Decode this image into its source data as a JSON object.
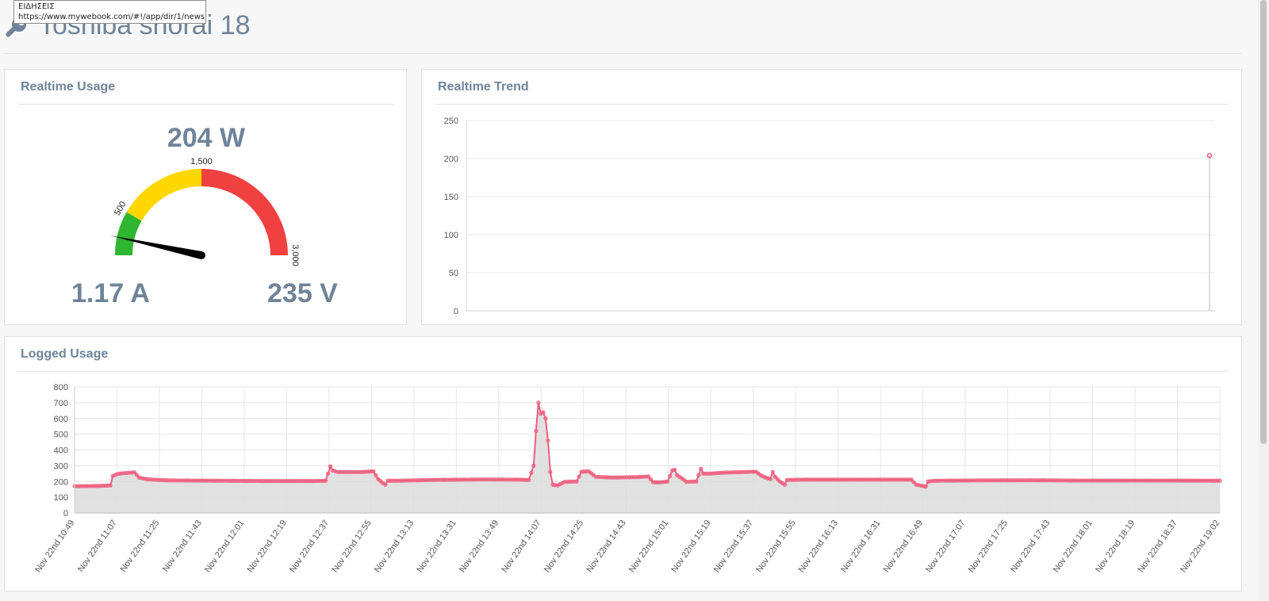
{
  "tooltip": {
    "line1": "ΕΙΔΗΣΕΙΣ",
    "line2": "https://www.mywebook.com/#!/app/dir/1/news"
  },
  "header": {
    "title": "Toshiba shorai 18",
    "icon": "wrench-icon"
  },
  "realtime_usage": {
    "title": "Realtime Usage",
    "power": "204 W",
    "current": "1.17 A",
    "voltage": "235 V",
    "gauge": {
      "min": 0,
      "max": 3000,
      "value": 204,
      "bands": [
        {
          "from": 0,
          "to": 500,
          "color": "#2fb52f"
        },
        {
          "from": 500,
          "to": 1500,
          "color": "#ffd700"
        },
        {
          "from": 1500,
          "to": 3000,
          "color": "#f04040"
        }
      ],
      "tick_labels": [
        {
          "value": 500,
          "label": "500"
        },
        {
          "value": 1500,
          "label": "1,500"
        },
        {
          "value": 3000,
          "label": "3,000"
        }
      ]
    }
  },
  "realtime_trend": {
    "title": "Realtime Trend",
    "chart_data": {
      "type": "line",
      "ylim": [
        0,
        250
      ],
      "y_ticks": [
        "0",
        "50",
        "100",
        "150",
        "200",
        "250"
      ],
      "values": [
        204
      ],
      "color": "#ef5f7f",
      "grid": true
    }
  },
  "logged_usage": {
    "title": "Logged Usage",
    "chart_data": {
      "type": "area",
      "ylim": [
        0,
        800
      ],
      "y_ticks": [
        "0",
        "100",
        "200",
        "300",
        "400",
        "500",
        "600",
        "700",
        "800"
      ],
      "x_labels": [
        "Nov 22nd 10:49",
        "Nov 22nd 11:07",
        "Nov 22nd 11:25",
        "Nov 22nd 11:43",
        "Nov 22nd 12:01",
        "Nov 22nd 12:19",
        "Nov 22nd 12:37",
        "Nov 22nd 12:55",
        "Nov 22nd 13:13",
        "Nov 22nd 13:31",
        "Nov 22nd 13:49",
        "Nov 22nd 14:07",
        "Nov 22nd 14:25",
        "Nov 22nd 14:43",
        "Nov 22nd 15:01",
        "Nov 22nd 15:19",
        "Nov 22nd 15:37",
        "Nov 22nd 15:55",
        "Nov 22nd 16:13",
        "Nov 22nd 16:31",
        "Nov 22nd 16:49",
        "Nov 22nd 17:07",
        "Nov 22nd 17:25",
        "Nov 22nd 17:43",
        "Nov 22nd 18:01",
        "Nov 22nd 18:19",
        "Nov 22nd 18:37",
        "Nov 22nd 19:02"
      ],
      "x_start": "Nov 22nd 10:49",
      "x_end": "Nov 22nd 19:02",
      "series_points": [
        [
          0,
          170
        ],
        [
          10,
          172
        ],
        [
          15,
          175
        ],
        [
          16,
          235
        ],
        [
          18,
          248
        ],
        [
          20,
          252
        ],
        [
          25,
          258
        ],
        [
          27,
          225
        ],
        [
          30,
          215
        ],
        [
          35,
          210
        ],
        [
          40,
          207
        ],
        [
          60,
          205
        ],
        [
          80,
          203
        ],
        [
          100,
          203
        ],
        [
          105,
          205
        ],
        [
          107,
          295
        ],
        [
          108,
          270
        ],
        [
          110,
          260
        ],
        [
          120,
          260
        ],
        [
          125,
          265
        ],
        [
          127,
          215
        ],
        [
          129,
          190
        ],
        [
          130,
          180
        ],
        [
          131,
          205
        ],
        [
          135,
          205
        ],
        [
          150,
          210
        ],
        [
          170,
          213
        ],
        [
          185,
          212
        ],
        [
          190,
          210
        ],
        [
          192,
          300
        ],
        [
          193,
          520
        ],
        [
          194,
          700
        ],
        [
          195,
          630
        ],
        [
          196,
          640
        ],
        [
          197,
          600
        ],
        [
          198,
          460
        ],
        [
          199,
          260
        ],
        [
          200,
          180
        ],
        [
          202,
          175
        ],
        [
          205,
          198
        ],
        [
          210,
          200
        ],
        [
          212,
          262
        ],
        [
          215,
          265
        ],
        [
          218,
          230
        ],
        [
          225,
          225
        ],
        [
          235,
          228
        ],
        [
          240,
          232
        ],
        [
          242,
          195
        ],
        [
          245,
          195
        ],
        [
          248,
          200
        ],
        [
          250,
          270
        ],
        [
          251,
          275
        ],
        [
          252,
          240
        ],
        [
          254,
          220
        ],
        [
          256,
          198
        ],
        [
          260,
          200
        ],
        [
          262,
          280
        ],
        [
          263,
          250
        ],
        [
          266,
          250
        ],
        [
          270,
          255
        ],
        [
          275,
          258
        ],
        [
          280,
          260
        ],
        [
          285,
          262
        ],
        [
          287,
          240
        ],
        [
          289,
          225
        ],
        [
          291,
          215
        ],
        [
          292,
          260
        ],
        [
          293,
          230
        ],
        [
          295,
          200
        ],
        [
          297,
          180
        ],
        [
          298,
          210
        ],
        [
          305,
          212
        ],
        [
          320,
          212
        ],
        [
          340,
          212
        ],
        [
          350,
          212
        ],
        [
          352,
          180
        ],
        [
          356,
          168
        ],
        [
          357,
          200
        ],
        [
          360,
          205
        ],
        [
          380,
          207
        ],
        [
          400,
          208
        ],
        [
          420,
          206
        ],
        [
          440,
          206
        ],
        [
          460,
          206
        ],
        [
          479,
          205
        ]
      ],
      "color": "#ef5f7f",
      "grid": true
    }
  }
}
